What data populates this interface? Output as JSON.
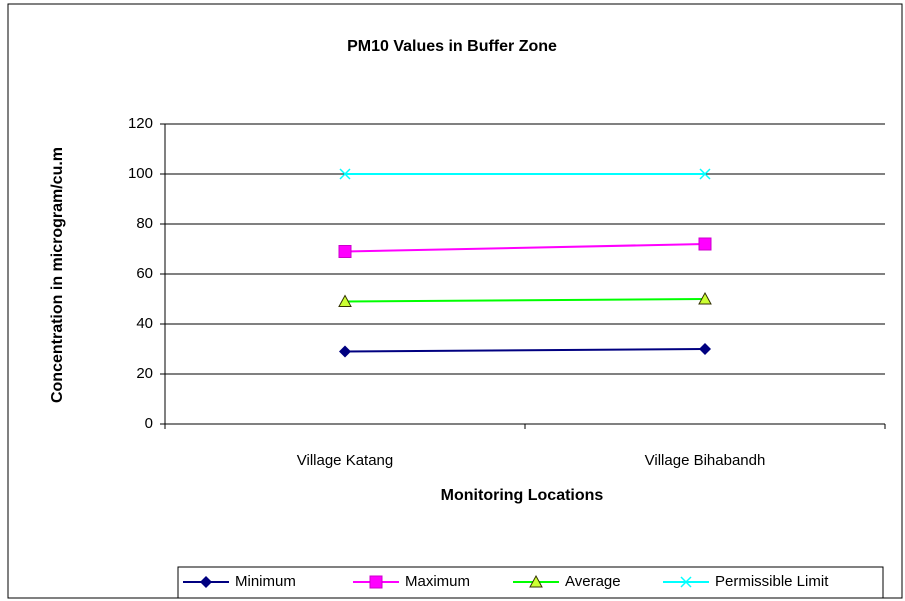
{
  "chart_data": {
    "type": "line",
    "title": "PM10 Values in Buffer Zone",
    "x_label": "Monitoring Locations",
    "y_label": "Concentration in microgram/cu.m",
    "categories": [
      "Village Katang",
      "Village Bihabandh"
    ],
    "series": [
      {
        "name": "Minimum",
        "color": "#000080",
        "marker": "diamond",
        "values": [
          29,
          30
        ]
      },
      {
        "name": "Maximum",
        "color": "#ff00ff",
        "marker": "square",
        "values": [
          69,
          72
        ]
      },
      {
        "name": "Average",
        "color": "#00ff00",
        "marker": "triangle",
        "values": [
          49,
          50
        ]
      },
      {
        "name": "Permissible  Limit",
        "color": "#00ffff",
        "marker": "x",
        "values": [
          100,
          100
        ]
      }
    ],
    "ylim": [
      0,
      120
    ],
    "yticks": [
      0,
      20,
      40,
      60,
      80,
      100,
      120
    ],
    "grid": true,
    "legend": "bottom"
  }
}
